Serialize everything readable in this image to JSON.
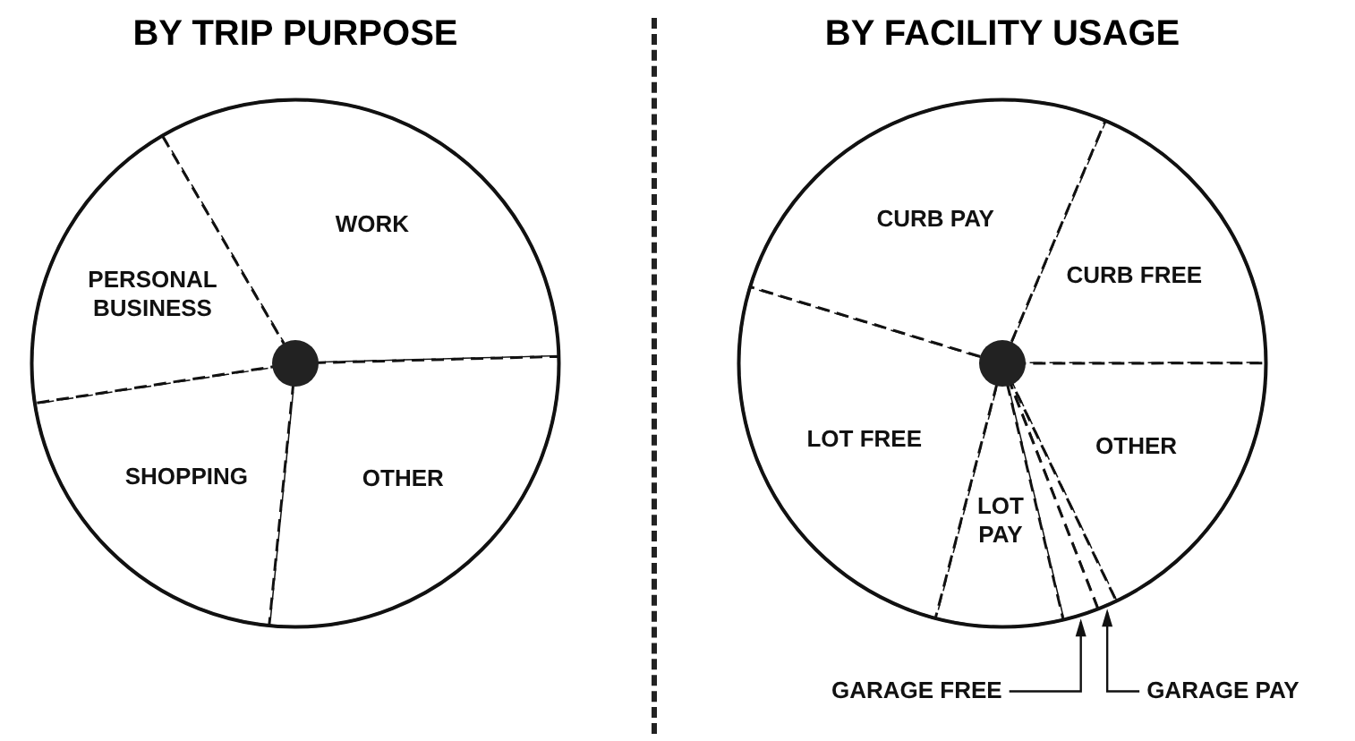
{
  "chart_data": [
    {
      "type": "pie",
      "title": "BY TRIP PURPOSE",
      "categories": [
        "WORK",
        "OTHER",
        "SHOPPING",
        "PERSONAL BUSINESS"
      ],
      "values": [
        33,
        27,
        21,
        19
      ],
      "colors": [
        "#ffffff",
        "#ffffff",
        "#ffffff",
        "#ffffff"
      ],
      "legend": false
    },
    {
      "type": "pie",
      "title": "BY FACILITY USAGE",
      "categories": [
        "CURB FREE",
        "OTHER",
        "GARAGE PAY",
        "GARAGE FREE",
        "LOT PAY",
        "LOT FREE",
        "CURB PAY"
      ],
      "values": [
        18.6,
        17.9,
        1.2,
        2.2,
        7.8,
        25.6,
        26.7
      ],
      "colors": [
        "#ffffff",
        "#ffffff",
        "#ffffff",
        "#ffffff",
        "#ffffff",
        "#ffffff",
        "#ffffff"
      ],
      "legend": false
    }
  ]
}
